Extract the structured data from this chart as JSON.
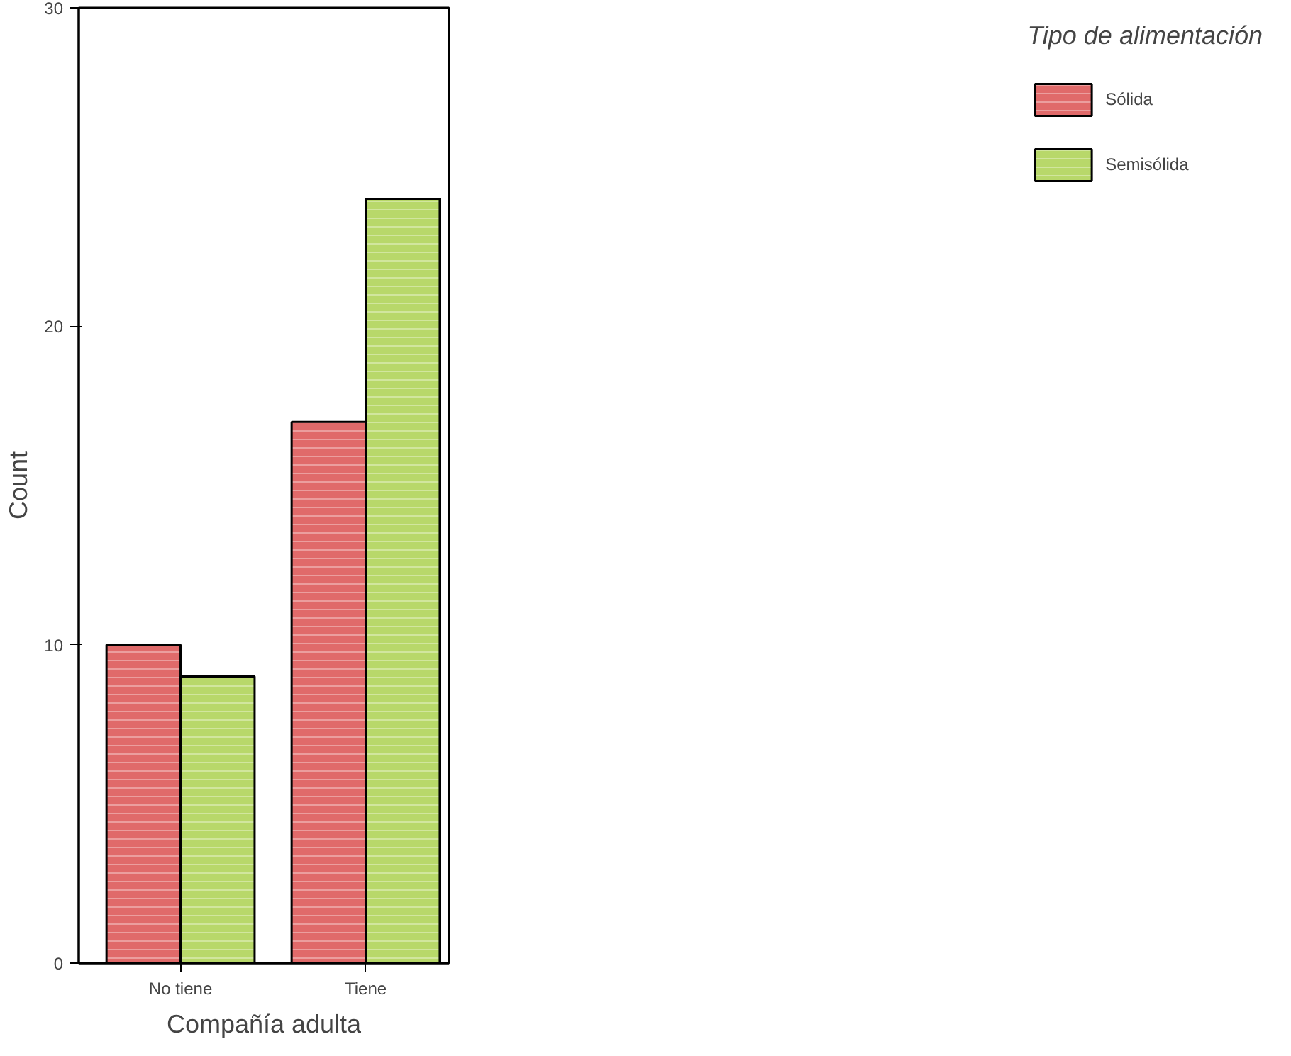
{
  "chart_data": {
    "type": "bar",
    "xlabel": "Compañía adulta",
    "ylabel": "Count",
    "legend_title": "Tipo de alimentación",
    "categories": [
      "No tiene",
      "Tiene"
    ],
    "series": [
      {
        "name": "Sólida",
        "color": "#e06a6a",
        "values": [
          10,
          17
        ]
      },
      {
        "name": "Semisólida",
        "color": "#b8d86a",
        "values": [
          9,
          24
        ]
      }
    ],
    "ylim": [
      0,
      30
    ],
    "yticks": [
      0,
      10,
      20,
      30
    ],
    "grid": false,
    "legend": "right"
  }
}
